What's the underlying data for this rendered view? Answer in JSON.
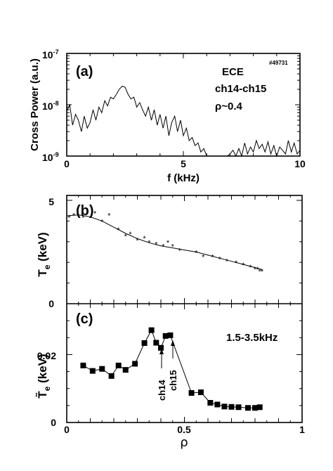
{
  "figure": {
    "shot_number": "#49731"
  },
  "chart_data": [
    {
      "panel": "(a)",
      "type": "line",
      "xlabel": "f (kHz)",
      "ylabel": "Cross Power (a.u.)",
      "yscale": "log",
      "xlim": [
        0,
        10
      ],
      "ylim": [
        1e-09,
        1e-07
      ],
      "x_ticks": [
        "0",
        "5",
        "10"
      ],
      "y_ticks": [
        "10-9",
        "10-8",
        "10-7"
      ],
      "annotations": [
        "ECE",
        "ch14-ch15",
        "ρ~0.4"
      ],
      "series": [
        {
          "x": [
            0.0,
            0.13,
            0.25,
            0.38,
            0.5,
            0.63,
            0.75,
            0.88,
            1.0,
            1.13,
            1.25,
            1.38,
            1.5,
            1.63,
            1.75,
            1.88,
            2.0,
            2.13,
            2.25,
            2.38,
            2.5,
            2.63,
            2.75,
            2.88,
            3.0,
            3.13,
            3.25,
            3.38,
            3.5,
            3.63,
            3.75,
            3.88,
            4.0,
            4.13,
            4.25,
            4.38,
            4.5,
            4.63,
            4.75,
            4.88,
            5.0,
            5.13,
            5.25,
            5.38,
            5.5,
            5.63,
            5.75,
            5.88,
            6.0,
            6.13,
            6.25,
            6.38,
            6.5,
            6.63,
            6.75,
            6.88,
            7.0,
            7.13,
            7.25,
            7.38,
            7.5,
            7.63,
            7.75,
            7.88,
            8.0,
            8.13,
            8.25,
            8.38,
            8.5,
            8.63,
            8.75,
            8.88,
            9.0,
            9.13,
            9.25,
            9.38,
            9.5,
            9.63,
            9.75,
            9.88,
            10.0
          ],
          "y": [
            7.5e-09,
            1e-08,
            4e-09,
            6.5e-09,
            5e-09,
            3e-09,
            6e-09,
            3.5e-09,
            4.5e-09,
            8e-09,
            5e-09,
            9e-09,
            7e-09,
            1.2e-08,
            9.5e-09,
            1.4e-08,
            1.3e-08,
            1.6e-08,
            2e-08,
            2.3e-08,
            2.2e-08,
            1.6e-08,
            1.3e-08,
            1.4e-08,
            9e-09,
            1.1e-08,
            8e-09,
            6e-09,
            9e-09,
            5e-09,
            8e-09,
            4e-09,
            6.5e-09,
            3.5e-09,
            6e-09,
            2.5e-09,
            4.5e-09,
            6e-09,
            3e-09,
            5e-09,
            2.5e-09,
            3.5e-09,
            2e-09,
            2.3e-09,
            1.6e-09,
            1.8e-09,
            1.2e-09,
            1.4e-09,
            1e-09,
            1e-09,
            1e-09,
            1e-09,
            1e-09,
            1e-09,
            1e-09,
            1e-09,
            1.1e-09,
            1.3e-09,
            1e-09,
            1.4e-09,
            1e-09,
            1.8e-09,
            1.1e-09,
            1.5e-09,
            1.2e-09,
            2e-09,
            1.4e-09,
            1.7e-09,
            1.2e-09,
            1.9e-09,
            1.1e-09,
            1.6e-09,
            1e-09,
            1.5e-09,
            1.3e-09,
            1.1e-09,
            2e-09,
            1.2e-09,
            1.8e-09,
            1.1e-09,
            1.3e-09
          ]
        }
      ]
    },
    {
      "panel": "(b)",
      "type": "scatter",
      "xlabel": "",
      "ylabel": "Te (keV)",
      "ylabel_main": "T",
      "ylabel_sub": "e",
      "ylabel_rest": " (keV)",
      "xlim": [
        0,
        1
      ],
      "ylim": [
        0,
        5
      ],
      "y_ticks": [
        "0",
        "5"
      ],
      "scatter": {
        "x": [
          0.01,
          0.03,
          0.07,
          0.12,
          0.15,
          0.18,
          0.22,
          0.25,
          0.27,
          0.3,
          0.33,
          0.35,
          0.38,
          0.41,
          0.43,
          0.45,
          0.48,
          0.55,
          0.58,
          0.62,
          0.65,
          0.68,
          0.72,
          0.75,
          0.78,
          0.8,
          0.81,
          0.82,
          0.83
        ],
        "y": [
          4.2,
          4.3,
          4.2,
          4.4,
          4.0,
          4.3,
          3.6,
          3.3,
          3.4,
          3.1,
          3.2,
          3.0,
          2.9,
          2.8,
          3.0,
          2.8,
          2.6,
          2.5,
          2.3,
          2.3,
          2.2,
          2.1,
          2.0,
          1.9,
          1.8,
          1.7,
          1.7,
          1.6,
          1.6
        ]
      },
      "fit": {
        "x": [
          0.0,
          0.05,
          0.1,
          0.15,
          0.2,
          0.25,
          0.3,
          0.35,
          0.4,
          0.45,
          0.5,
          0.55,
          0.6,
          0.65,
          0.7,
          0.75,
          0.8,
          0.83
        ],
        "y": [
          4.25,
          4.3,
          4.2,
          4.0,
          3.7,
          3.4,
          3.15,
          2.95,
          2.8,
          2.7,
          2.6,
          2.5,
          2.35,
          2.2,
          2.05,
          1.9,
          1.75,
          1.65
        ]
      }
    },
    {
      "panel": "(c)",
      "type": "line",
      "xlabel": "ρ",
      "ylabel": "T̃e (keV)",
      "ylabel_main": "T̃",
      "ylabel_sub": "e",
      "ylabel_rest": " (keV)",
      "xlim": [
        0,
        1
      ],
      "ylim": [
        0,
        0.035
      ],
      "x_ticks": [
        "0",
        "0.5",
        "1"
      ],
      "y_ticks": [
        "0",
        "0.02"
      ],
      "annotations": [
        "1.5-3.5kHz",
        "ch14",
        "ch15"
      ],
      "series": [
        {
          "x": [
            0.07,
            0.11,
            0.15,
            0.19,
            0.22,
            0.25,
            0.29,
            0.33,
            0.36,
            0.38,
            0.4,
            0.42,
            0.44,
            0.53,
            0.57,
            0.61,
            0.64,
            0.67,
            0.7,
            0.73,
            0.77,
            0.8,
            0.82
          ],
          "y": [
            0.0168,
            0.0152,
            0.0158,
            0.0137,
            0.0168,
            0.0155,
            0.0173,
            0.0234,
            0.0272,
            0.0235,
            0.022,
            0.0255,
            0.0257,
            0.0087,
            0.0089,
            0.0058,
            0.0053,
            0.0047,
            0.0046,
            0.0045,
            0.0043,
            0.0043,
            0.0045
          ]
        }
      ]
    }
  ]
}
